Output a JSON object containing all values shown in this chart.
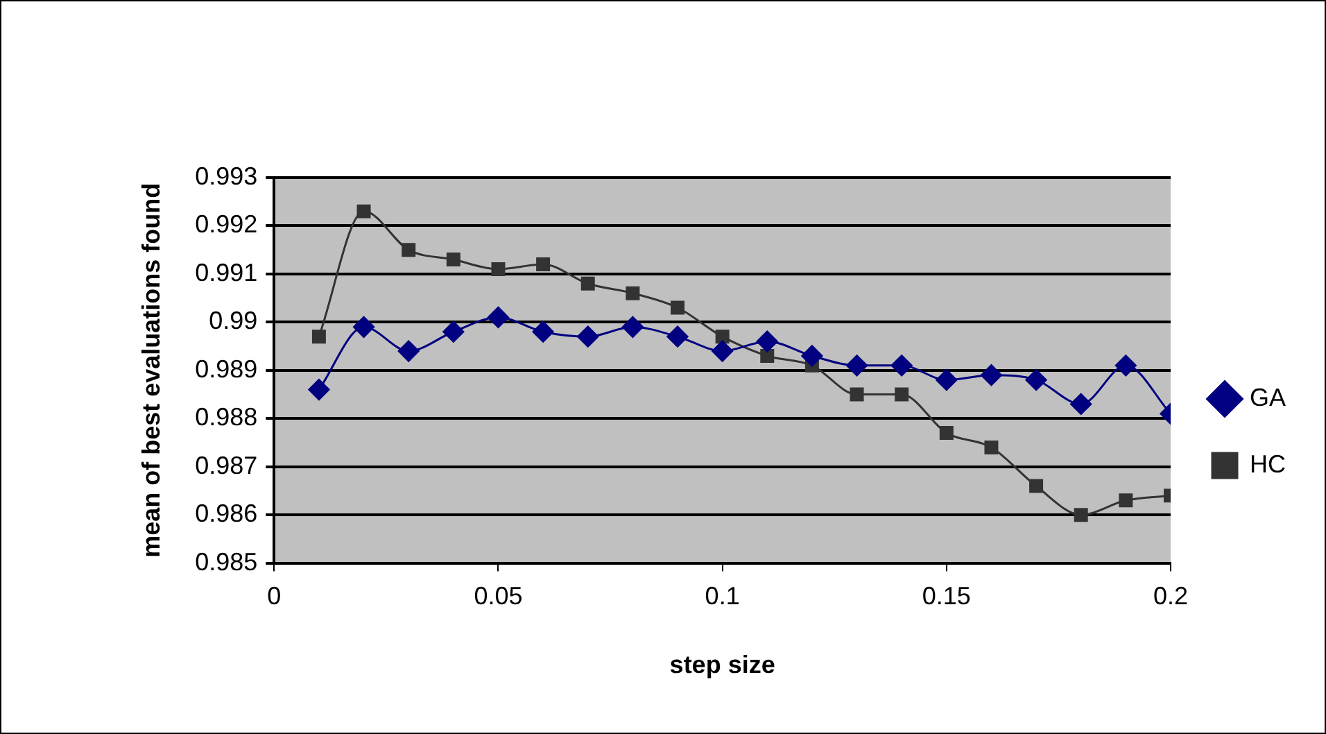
{
  "chart_data": {
    "type": "line",
    "xlabel": "step size",
    "ylabel": "mean of best evaluations found",
    "x": [
      0.01,
      0.02,
      0.03,
      0.04,
      0.05,
      0.06,
      0.07,
      0.08,
      0.09,
      0.1,
      0.11,
      0.12,
      0.13,
      0.14,
      0.15,
      0.16,
      0.17,
      0.18,
      0.19,
      0.2
    ],
    "series": [
      {
        "name": "GA",
        "color": "#000080",
        "marker": "diamond",
        "values": [
          0.9886,
          0.9899,
          0.9894,
          0.9898,
          0.9901,
          0.9898,
          0.9897,
          0.9899,
          0.9897,
          0.9894,
          0.9896,
          0.9893,
          0.9891,
          0.9891,
          0.9888,
          0.9889,
          0.9888,
          0.9883,
          0.9891,
          0.9881
        ]
      },
      {
        "name": "HC",
        "color": "#333333",
        "marker": "square",
        "values": [
          0.9897,
          0.9923,
          0.9915,
          0.9913,
          0.9911,
          0.9912,
          0.9908,
          0.9906,
          0.9903,
          0.9897,
          0.9893,
          0.9891,
          0.9885,
          0.9885,
          0.9877,
          0.9874,
          0.9866,
          0.986,
          0.9863,
          0.9864
        ]
      }
    ],
    "xlim": [
      0,
      0.2
    ],
    "xticks": [
      0,
      0.05,
      0.1,
      0.15,
      0.2
    ],
    "ylim": [
      0.985,
      0.993
    ],
    "yticks": [
      0.985,
      0.986,
      0.987,
      0.988,
      0.989,
      0.99,
      0.991,
      0.992,
      0.993
    ],
    "grid": "y",
    "legend": "right",
    "line_style": "solid"
  }
}
